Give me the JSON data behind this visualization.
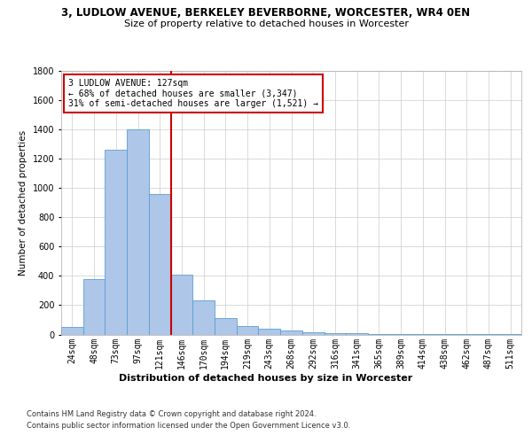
{
  "title": "3, LUDLOW AVENUE, BERKELEY BEVERBORNE, WORCESTER, WR4 0EN",
  "subtitle": "Size of property relative to detached houses in Worcester",
  "xlabel": "Distribution of detached houses by size in Worcester",
  "ylabel": "Number of detached properties",
  "categories": [
    "24sqm",
    "48sqm",
    "73sqm",
    "97sqm",
    "121sqm",
    "146sqm",
    "170sqm",
    "194sqm",
    "219sqm",
    "243sqm",
    "268sqm",
    "292sqm",
    "316sqm",
    "341sqm",
    "365sqm",
    "389sqm",
    "414sqm",
    "438sqm",
    "462sqm",
    "487sqm",
    "511sqm"
  ],
  "values": [
    50,
    380,
    1260,
    1400,
    960,
    410,
    230,
    110,
    60,
    40,
    25,
    15,
    10,
    7,
    5,
    5,
    3,
    3,
    3,
    3,
    3
  ],
  "bar_color": "#aec6e8",
  "bar_edge_color": "#5a9fd4",
  "vline_x_index": 4,
  "vline_color": "#cc0000",
  "annotation_text": "3 LUDLOW AVENUE: 127sqm\n← 68% of detached houses are smaller (3,347)\n31% of semi-detached houses are larger (1,521) →",
  "annotation_box_color": "#ffffff",
  "annotation_box_edge": "#cc0000",
  "ylim": [
    0,
    1800
  ],
  "yticks": [
    0,
    200,
    400,
    600,
    800,
    1000,
    1200,
    1400,
    1600,
    1800
  ],
  "footer_line1": "Contains HM Land Registry data © Crown copyright and database right 2024.",
  "footer_line2": "Contains public sector information licensed under the Open Government Licence v3.0.",
  "background_color": "#ffffff",
  "grid_color": "#cccccc",
  "title_fontsize": 8.5,
  "subtitle_fontsize": 8,
  "ylabel_fontsize": 7.5,
  "xlabel_fontsize": 8,
  "tick_fontsize": 7,
  "annotation_fontsize": 7,
  "footer_fontsize": 6
}
